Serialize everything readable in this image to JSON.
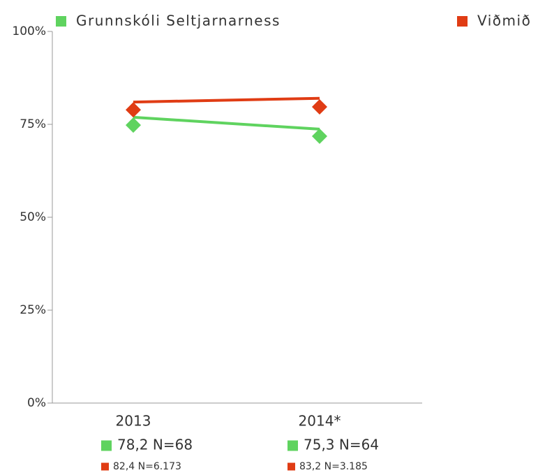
{
  "chart_data": {
    "type": "line",
    "categories": [
      "2013",
      "2014*"
    ],
    "series": [
      {
        "name": "Grunnskóli Seltjarnarness",
        "color": "#5fd35f",
        "values": [
          76.9,
          73.7
        ],
        "marker_values": [
          74.8,
          71.8
        ]
      },
      {
        "name": "Viðmið",
        "color": "#e03c14",
        "values": [
          81.0,
          82.0
        ],
        "marker_values": [
          78.9,
          79.7
        ]
      }
    ],
    "annotations": [
      [
        "78,2 N=68",
        "82,4 N=6.173"
      ],
      [
        "75,3 N=64",
        "83,2 N=3.185"
      ]
    ],
    "ylim": [
      0,
      100
    ],
    "yticks": [
      {
        "value": 0,
        "label": "0%"
      },
      {
        "value": 25,
        "label": "25%"
      },
      {
        "value": 50,
        "label": "50%"
      },
      {
        "value": 75,
        "label": "75%"
      },
      {
        "value": 100,
        "label": "100%"
      }
    ],
    "grid": false
  }
}
